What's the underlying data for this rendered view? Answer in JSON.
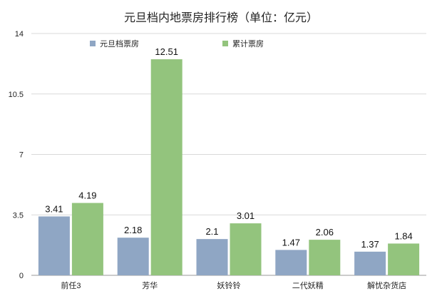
{
  "chart_data": {
    "type": "bar",
    "title": "元旦档内地票房排行榜（单位：亿元）",
    "categories": [
      "前任3",
      "芳华",
      "妖铃铃",
      "二代妖精",
      "解忧杂货店"
    ],
    "series": [
      {
        "name": "元旦档票房",
        "color": "#8fa6c4",
        "values": [
          3.41,
          2.18,
          2.1,
          1.47,
          1.37
        ]
      },
      {
        "name": "累计票房",
        "color": "#93c47d",
        "values": [
          4.19,
          12.51,
          3.01,
          2.06,
          1.84
        ]
      }
    ],
    "ylim": [
      0,
      14
    ],
    "yticks": [
      0,
      3.5,
      7,
      10.5,
      14
    ],
    "ytick_labels": [
      "0",
      "3.5",
      "7",
      "10.5",
      "14"
    ],
    "grid": true,
    "legend": "top-left"
  }
}
